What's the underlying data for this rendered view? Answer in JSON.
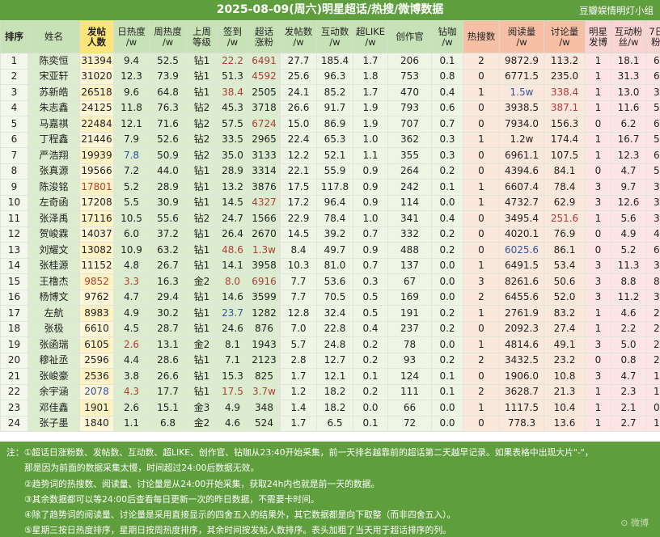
{
  "title": "2025-08-09(周六)明星超话/热搜/微博数据",
  "credit": "豆瓣娱情明灯小组",
  "headers": [
    {
      "key": "rank",
      "label": "排序",
      "bg": "#c8e2b7",
      "bold": true
    },
    {
      "key": "name",
      "label": "姓名",
      "bg": "#c8e2b7",
      "bold": false
    },
    {
      "key": "posters",
      "label": "发帖\n人数",
      "bg": "#fde57b",
      "bold": true
    },
    {
      "key": "daily_heat",
      "label": "日热度\n/w",
      "bg": "#c8e2b7",
      "bold": false
    },
    {
      "key": "weekly_heat",
      "label": "周热度\n/w",
      "bg": "#c8e2b7",
      "bold": false
    },
    {
      "key": "last_week_level",
      "label": "上周\n等级",
      "bg": "#c8e2b7",
      "bold": false
    },
    {
      "key": "checkin",
      "label": "签到\n/w",
      "bg": "#c8e2b7",
      "bold": false
    },
    {
      "key": "chaohua_fans",
      "label": "超话\n涨粉",
      "bg": "#c8e2b7",
      "bold": false
    },
    {
      "key": "posts",
      "label": "发帖数\n/w",
      "bg": "#c8e2b7",
      "bold": false
    },
    {
      "key": "interactions",
      "label": "互动数\n/w",
      "bg": "#c8e2b7",
      "bold": false
    },
    {
      "key": "super_like",
      "label": "超LIKE\n/w",
      "bg": "#c8e2b7",
      "bold": false
    },
    {
      "key": "creator",
      "label": "创作官",
      "bg": "#c8e2b7",
      "bold": false
    },
    {
      "key": "diamond",
      "label": "钻咖\n/w",
      "bg": "#c8e2b7",
      "bold": false
    },
    {
      "key": "hot_search",
      "label": "热搜数",
      "bg": "#f6bfa6",
      "bold": false
    },
    {
      "key": "reads",
      "label": "阅读量\n/w",
      "bg": "#f6bfa6",
      "bold": false
    },
    {
      "key": "discussions",
      "label": "讨论量\n/w",
      "bg": "#f6bfa6",
      "bold": false
    },
    {
      "key": "star_posts",
      "label": "明星\n发博",
      "bg": "#f9d4d2",
      "bold": false
    },
    {
      "key": "interaction_fans",
      "label": "互动粉\n丝/w",
      "bg": "#f9d4d2",
      "bold": false
    },
    {
      "key": "fans_7d",
      "label": "7日涨\n粉/w",
      "bg": "#f9d4d2",
      "bold": false
    }
  ],
  "rows": [
    [
      "1",
      "陈奕恒",
      "31394",
      "9.4",
      "52.5",
      "钻1",
      "22.2",
      "6491",
      "27.7",
      "185.4",
      "1.7",
      "206",
      "0.1",
      "2",
      "9872.9",
      "113.2",
      "1",
      "18.1",
      "6.1"
    ],
    [
      "2",
      "宋亚轩",
      "31020",
      "12.3",
      "73.9",
      "钻1",
      "51.3",
      "4592",
      "25.6",
      "96.3",
      "1.8",
      "753",
      "0.8",
      "0",
      "6771.5",
      "235.0",
      "1",
      "31.3",
      "6.3"
    ],
    [
      "3",
      "苏新皓",
      "26518",
      "9.6",
      "64.8",
      "钻1",
      "38.4",
      "2505",
      "24.1",
      "85.2",
      "1.7",
      "470",
      "0.4",
      "1",
      "1.5w",
      "338.4",
      "1",
      "13.0",
      "3.9"
    ],
    [
      "4",
      "朱志鑫",
      "24125",
      "11.8",
      "76.3",
      "钻2",
      "45.3",
      "3718",
      "26.6",
      "91.7",
      "1.9",
      "793",
      "0.6",
      "0",
      "3938.5",
      "387.1",
      "1",
      "11.6",
      "5.5"
    ],
    [
      "5",
      "马嘉祺",
      "22484",
      "12.1",
      "71.6",
      "钻2",
      "57.5",
      "6724",
      "15.0",
      "86.9",
      "1.9",
      "707",
      "0.7",
      "0",
      "7934.0",
      "156.3",
      "0",
      "6.2",
      "6.9"
    ],
    [
      "6",
      "丁程鑫",
      "21446",
      "7.9",
      "52.6",
      "钻2",
      "33.5",
      "2965",
      "22.4",
      "65.3",
      "1.0",
      "362",
      "0.3",
      "1",
      "1.2w",
      "174.4",
      "1",
      "16.7",
      "5.9"
    ],
    [
      "7",
      "严浩翔",
      "19939",
      "7.8",
      "50.9",
      "钻2",
      "35.0",
      "3133",
      "12.2",
      "52.1",
      "1.1",
      "355",
      "0.3",
      "0",
      "6961.1",
      "107.5",
      "1",
      "12.3",
      "6.2"
    ],
    [
      "8",
      "张真源",
      "19566",
      "7.2",
      "44.0",
      "钻1",
      "28.9",
      "3314",
      "22.1",
      "55.9",
      "0.9",
      "264",
      "0.2",
      "0",
      "4394.6",
      "84.1",
      "0",
      "4.7",
      "5.6"
    ],
    [
      "9",
      "陈浚铭",
      "17801",
      "5.2",
      "28.9",
      "钻1",
      "13.2",
      "3876",
      "17.5",
      "117.8",
      "0.9",
      "242",
      "0.1",
      "1",
      "6607.4",
      "78.4",
      "3",
      "9.7",
      "3.5"
    ],
    [
      "10",
      "左奇函",
      "17208",
      "5.5",
      "30.9",
      "钻1",
      "14.5",
      "4327",
      "17.2",
      "96.4",
      "0.9",
      "114",
      "0.0",
      "1",
      "4732.7",
      "62.9",
      "3",
      "12.6",
      "3.9"
    ],
    [
      "11",
      "张泽禹",
      "17116",
      "10.5",
      "55.6",
      "钻2",
      "24.7",
      "1566",
      "22.9",
      "78.4",
      "1.0",
      "341",
      "0.4",
      "0",
      "3495.4",
      "251.6",
      "1",
      "5.6",
      "3.9"
    ],
    [
      "12",
      "贺峻霖",
      "14037",
      "6.0",
      "37.2",
      "钻1",
      "26.4",
      "2670",
      "14.5",
      "39.2",
      "0.7",
      "332",
      "0.2",
      "0",
      "4020.1",
      "76.9",
      "0",
      "4.9",
      "4.5"
    ],
    [
      "13",
      "刘耀文",
      "13082",
      "10.9",
      "63.2",
      "钻1",
      "48.6",
      "1.3w",
      "8.4",
      "49.7",
      "0.9",
      "488",
      "0.2",
      "0",
      "6025.6",
      "86.1",
      "0",
      "5.2",
      "6.0"
    ],
    [
      "14",
      "张桂源",
      "11152",
      "4.8",
      "26.7",
      "钻1",
      "14.1",
      "3958",
      "10.3",
      "81.0",
      "0.7",
      "137",
      "0.0",
      "1",
      "6491.5",
      "53.4",
      "3",
      "11.3",
      "3.9"
    ],
    [
      "15",
      "王橹杰",
      "9852",
      "3.3",
      "16.3",
      "金2",
      "8.0",
      "6916",
      "7.7",
      "53.6",
      "0.3",
      "67",
      "0.0",
      "3",
      "8261.6",
      "50.6",
      "3",
      "8.8",
      "8.5"
    ],
    [
      "16",
      "杨博文",
      "9762",
      "4.7",
      "29.4",
      "钻1",
      "14.6",
      "3599",
      "7.7",
      "70.5",
      "0.5",
      "169",
      "0.0",
      "2",
      "6455.6",
      "52.0",
      "3",
      "11.2",
      "3.5"
    ],
    [
      "17",
      "左航",
      "8983",
      "4.9",
      "30.2",
      "钻1",
      "23.7",
      "1282",
      "12.8",
      "32.4",
      "0.5",
      "191",
      "0.2",
      "1",
      "2761.9",
      "83.2",
      "1",
      "4.6",
      "2.8"
    ],
    [
      "18",
      "张极",
      "6610",
      "4.5",
      "28.7",
      "钻1",
      "24.6",
      "876",
      "7.0",
      "22.8",
      "0.4",
      "237",
      "0.2",
      "0",
      "2092.3",
      "27.4",
      "1",
      "2.2",
      "2.6"
    ],
    [
      "19",
      "张函瑞",
      "6105",
      "2.6",
      "13.1",
      "金2",
      "8.1",
      "1943",
      "5.7",
      "24.8",
      "0.2",
      "78",
      "0.0",
      "1",
      "4814.6",
      "49.1",
      "3",
      "5.0",
      "2.6"
    ],
    [
      "20",
      "穆祉丞",
      "2596",
      "4.4",
      "28.6",
      "钻1",
      "7.1",
      "2123",
      "2.8",
      "12.7",
      "0.2",
      "93",
      "0.2",
      "2",
      "3432.5",
      "23.2",
      "0",
      "0.8",
      "2.5"
    ],
    [
      "21",
      "张峻豪",
      "2536",
      "3.8",
      "26.6",
      "钻1",
      "15.3",
      "825",
      "1.7",
      "12.1",
      "0.1",
      "124",
      "0.1",
      "0",
      "1906.0",
      "10.8",
      "3",
      "4.7",
      "1.9"
    ],
    [
      "22",
      "余宇涵",
      "2078",
      "4.3",
      "17.7",
      "钻1",
      "17.5",
      "3.7w",
      "1.2",
      "18.2",
      "0.2",
      "111",
      "0.1",
      "2",
      "3628.7",
      "21.3",
      "1",
      "2.3",
      "1.3"
    ],
    [
      "23",
      "邓佳鑫",
      "1901",
      "2.6",
      "15.1",
      "金3",
      "4.9",
      "348",
      "1.4",
      "18.2",
      "0.0",
      "66",
      "0.0",
      "1",
      "1117.5",
      "10.4",
      "1",
      "2.1",
      "0.8"
    ],
    [
      "24",
      "张子墨",
      "1840",
      "1.1",
      "6.8",
      "金2",
      "4.6",
      "524",
      "1.7",
      "6.5",
      "0.1",
      "72",
      "0.0",
      "0",
      "778.3",
      "13.6",
      "1",
      "2.7",
      "1.0"
    ]
  ],
  "cell_colors": {
    "red": "#b23a3a",
    "blue": "#2f55a4",
    "marks": [
      [
        0,
        6,
        "red"
      ],
      [
        0,
        7,
        "red"
      ],
      [
        1,
        7,
        "red"
      ],
      [
        2,
        6,
        "red"
      ],
      [
        2,
        14,
        "blue"
      ],
      [
        2,
        15,
        "red"
      ],
      [
        3,
        15,
        "red"
      ],
      [
        4,
        7,
        "red"
      ],
      [
        6,
        3,
        "blue"
      ],
      [
        8,
        2,
        "red"
      ],
      [
        9,
        7,
        "red"
      ],
      [
        10,
        15,
        "red"
      ],
      [
        12,
        6,
        "red"
      ],
      [
        12,
        7,
        "red"
      ],
      [
        12,
        14,
        "blue"
      ],
      [
        14,
        2,
        "red"
      ],
      [
        14,
        3,
        "red"
      ],
      [
        14,
        6,
        "red"
      ],
      [
        14,
        7,
        "red"
      ],
      [
        16,
        6,
        "blue"
      ],
      [
        18,
        3,
        "red"
      ],
      [
        21,
        2,
        "blue"
      ],
      [
        21,
        3,
        "red"
      ],
      [
        21,
        6,
        "red"
      ],
      [
        21,
        7,
        "red"
      ]
    ]
  },
  "notes": [
    {
      "text": "注：①超话日涨粉数、发帖数、互动数、超LIKE、创作官、钻咖从23:40开始采集，前一天排名越靠前的超话第二天越早记录。如果表格中出现大片\"-\"，",
      "indent": false
    },
    {
      "text": "那是因为前面的数据采集太慢，时间超过24:00后数据无效。",
      "indent": true
    },
    {
      "text": "②趋势词的热搜数、阅读量、讨论量是从24:00开始采集，获取24h内也就是前一天的数据。",
      "indent": true
    },
    {
      "text": "③其余数据都可以等24:00后查看每日更新一次的昨日数据，不需要卡时间。",
      "indent": true
    },
    {
      "text": "④除了趋势词的阅读量、讨论量是采用直接显示的四舍五入的结果外，其它数据都是向下取整（而非四舍五入）。",
      "indent": true
    },
    {
      "text": "⑤星期三按日热度排序，星期日按周热度排序，其余时间按发帖人数排序。表头加粗了当天用于超话排序的列。",
      "indent": true
    }
  ]
}
